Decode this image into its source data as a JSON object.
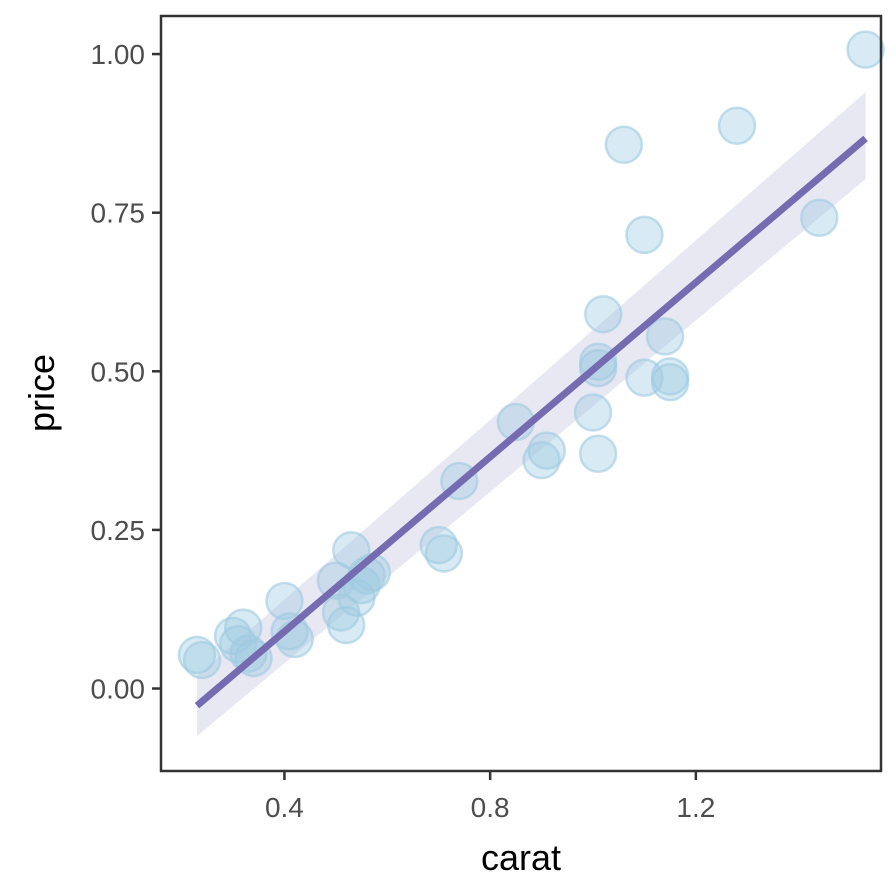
{
  "chart_data": {
    "type": "scatter",
    "title": "",
    "xlabel": "carat",
    "ylabel": "price",
    "xlim": [
      0.16,
      1.56
    ],
    "ylim": [
      -0.13,
      1.06
    ],
    "xticks": [
      0.4,
      0.8,
      1.2
    ],
    "xtick_labels": [
      "0.4",
      "0.8",
      "1.2"
    ],
    "yticks": [
      0.0,
      0.25,
      0.5,
      0.75,
      1.0
    ],
    "ytick_labels": [
      "0.00",
      "0.25",
      "0.50",
      "0.75",
      "1.00"
    ],
    "grid": false,
    "colors": {
      "points": "#9ecae1",
      "fit_line": "#756bb1",
      "confidence_band": "#bcbddc"
    },
    "points": [
      {
        "x": 0.23,
        "y": 0.053
      },
      {
        "x": 0.24,
        "y": 0.045
      },
      {
        "x": 0.3,
        "y": 0.083
      },
      {
        "x": 0.31,
        "y": 0.07
      },
      {
        "x": 0.32,
        "y": 0.096
      },
      {
        "x": 0.33,
        "y": 0.055
      },
      {
        "x": 0.34,
        "y": 0.048
      },
      {
        "x": 0.4,
        "y": 0.138
      },
      {
        "x": 0.41,
        "y": 0.09
      },
      {
        "x": 0.42,
        "y": 0.078
      },
      {
        "x": 0.5,
        "y": 0.17
      },
      {
        "x": 0.51,
        "y": 0.12
      },
      {
        "x": 0.52,
        "y": 0.1
      },
      {
        "x": 0.53,
        "y": 0.218
      },
      {
        "x": 0.54,
        "y": 0.143
      },
      {
        "x": 0.55,
        "y": 0.163
      },
      {
        "x": 0.56,
        "y": 0.178
      },
      {
        "x": 0.57,
        "y": 0.183
      },
      {
        "x": 0.7,
        "y": 0.226
      },
      {
        "x": 0.71,
        "y": 0.213
      },
      {
        "x": 0.74,
        "y": 0.327
      },
      {
        "x": 0.85,
        "y": 0.42
      },
      {
        "x": 0.9,
        "y": 0.36
      },
      {
        "x": 0.91,
        "y": 0.375
      },
      {
        "x": 1.0,
        "y": 0.435
      },
      {
        "x": 1.01,
        "y": 0.515
      },
      {
        "x": 1.01,
        "y": 0.505
      },
      {
        "x": 1.01,
        "y": 0.37
      },
      {
        "x": 1.02,
        "y": 0.59
      },
      {
        "x": 1.06,
        "y": 0.857
      },
      {
        "x": 1.1,
        "y": 0.715
      },
      {
        "x": 1.1,
        "y": 0.49
      },
      {
        "x": 1.14,
        "y": 0.555
      },
      {
        "x": 1.15,
        "y": 0.492
      },
      {
        "x": 1.15,
        "y": 0.483
      },
      {
        "x": 1.28,
        "y": 0.887
      },
      {
        "x": 1.44,
        "y": 0.742
      },
      {
        "x": 1.53,
        "y": 1.007
      }
    ],
    "fit": {
      "x": [
        0.23,
        1.53
      ],
      "y": [
        -0.027,
        0.867
      ],
      "lower": [
        -0.075,
        0.803
      ],
      "upper": [
        0.02,
        0.94
      ]
    }
  }
}
